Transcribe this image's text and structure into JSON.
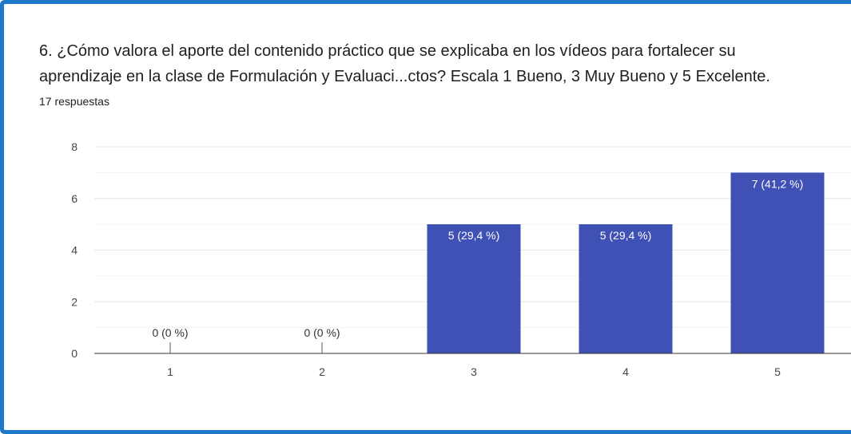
{
  "question": {
    "line1": "6. ¿Cómo valora el aporte del contenido práctico que se explicaba en los vídeos para fortalecer su",
    "line2": "aprendizaje en la clase de Formulación y Evaluaci...ctos? Escala 1 Bueno, 3 Muy Bueno y 5 Excelente.",
    "responses": "17 respuestas"
  },
  "colors": {
    "bar": "#3f51b5",
    "frame": "#1e78c8",
    "grid": "#e6e6e6",
    "axis": "#333333",
    "label_outside": "#333333",
    "label_inside": "#ffffff"
  },
  "chart_data": {
    "type": "bar",
    "categories": [
      "1",
      "2",
      "3",
      "4",
      "5"
    ],
    "values": [
      0,
      0,
      5,
      5,
      7
    ],
    "data_labels": [
      "0 (0 %)",
      "0 (0 %)",
      "5 (29,4 %)",
      "5 (29,4 %)",
      "7 (41,2 %)"
    ],
    "ylim": [
      0,
      8
    ],
    "yticks": [
      0,
      2,
      4,
      6,
      8
    ],
    "grid": true,
    "legend": "none"
  }
}
